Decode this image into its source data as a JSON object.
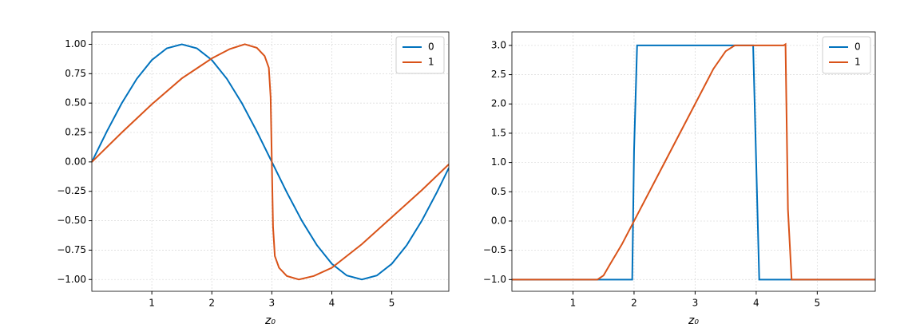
{
  "chart_data": [
    {
      "type": "line",
      "xlabel": "z₀",
      "xlim": [
        0,
        5.95
      ],
      "ylim": [
        -1.1,
        1.105
      ],
      "xticks": [
        1,
        2,
        3,
        4,
        5
      ],
      "yticks": [
        {
          "value": -1,
          "label": "−1.00"
        },
        {
          "value": -0.75,
          "label": "−0.75"
        },
        {
          "value": -0.5,
          "label": "−0.50"
        },
        {
          "value": -0.25,
          "label": "−0.25"
        },
        {
          "value": 0,
          "label": "0.00"
        },
        {
          "value": 0.25,
          "label": "0.25"
        },
        {
          "value": 0.5,
          "label": "0.50"
        },
        {
          "value": 0.75,
          "label": "0.75"
        },
        {
          "value": 1,
          "label": "1.00"
        }
      ],
      "grid": true,
      "legend": "upper right",
      "series": [
        {
          "name": "0",
          "color": "#0072bd",
          "x": [
            0,
            0.25,
            0.5,
            0.75,
            1,
            1.25,
            1.5,
            1.75,
            2,
            2.25,
            2.5,
            2.75,
            3,
            3.25,
            3.5,
            3.75,
            4,
            4.25,
            4.5,
            4.75,
            5,
            5.25,
            5.5,
            5.75,
            5.95
          ],
          "values": [
            0,
            0.259,
            0.5,
            0.707,
            0.866,
            0.966,
            1,
            0.966,
            0.866,
            0.707,
            0.5,
            0.259,
            0,
            -0.259,
            -0.5,
            -0.707,
            -0.866,
            -0.966,
            -1,
            -0.966,
            -0.866,
            -0.707,
            -0.5,
            -0.259,
            -0.052
          ]
        },
        {
          "name": "1",
          "color": "#d95319",
          "x": [
            0,
            0.5,
            1,
            1.5,
            2,
            2.3,
            2.55,
            2.75,
            2.88,
            2.95,
            2.98,
            3.0,
            3.02,
            3.05,
            3.12,
            3.25,
            3.45,
            3.7,
            4.0,
            4.5,
            5,
            5.5,
            5.95
          ],
          "values": [
            0,
            0.25,
            0.49,
            0.71,
            0.88,
            0.96,
            1.0,
            0.97,
            0.9,
            0.8,
            0.55,
            0,
            -0.55,
            -0.8,
            -0.9,
            -0.97,
            -1.0,
            -0.97,
            -0.9,
            -0.7,
            -0.47,
            -0.24,
            -0.02
          ]
        }
      ]
    },
    {
      "type": "line",
      "xlabel": "z₀",
      "xlim": [
        0,
        5.95
      ],
      "ylim": [
        -1.2,
        3.23
      ],
      "xticks": [
        1,
        2,
        3,
        4,
        5
      ],
      "yticks": [
        {
          "value": -1,
          "label": "−1.0"
        },
        {
          "value": -0.5,
          "label": "−0.5"
        },
        {
          "value": 0,
          "label": "0.0"
        },
        {
          "value": 0.5,
          "label": "0.5"
        },
        {
          "value": 1,
          "label": "1.0"
        },
        {
          "value": 1.5,
          "label": "1.5"
        },
        {
          "value": 2,
          "label": "2.0"
        },
        {
          "value": 2.5,
          "label": "2.5"
        },
        {
          "value": 3,
          "label": "3.0"
        }
      ],
      "grid": true,
      "legend": "upper right",
      "series": [
        {
          "name": "0",
          "color": "#0072bd",
          "x": [
            0,
            1.97,
            2.0,
            2.05,
            3.95,
            4.05,
            5.95
          ],
          "values": [
            -1,
            -1,
            1.2,
            3,
            3,
            -1,
            -1
          ]
        },
        {
          "name": "1",
          "color": "#d95319",
          "x": [
            0,
            1.4,
            1.5,
            1.6,
            1.8,
            2.0,
            2.5,
            3.0,
            3.3,
            3.5,
            3.65,
            4.45,
            4.48,
            4.52,
            4.58,
            5.95
          ],
          "values": [
            -1,
            -1,
            -0.93,
            -0.75,
            -0.4,
            0,
            1,
            2,
            2.6,
            2.9,
            3,
            3,
            3.02,
            0.2,
            -1,
            -1
          ]
        }
      ]
    }
  ]
}
